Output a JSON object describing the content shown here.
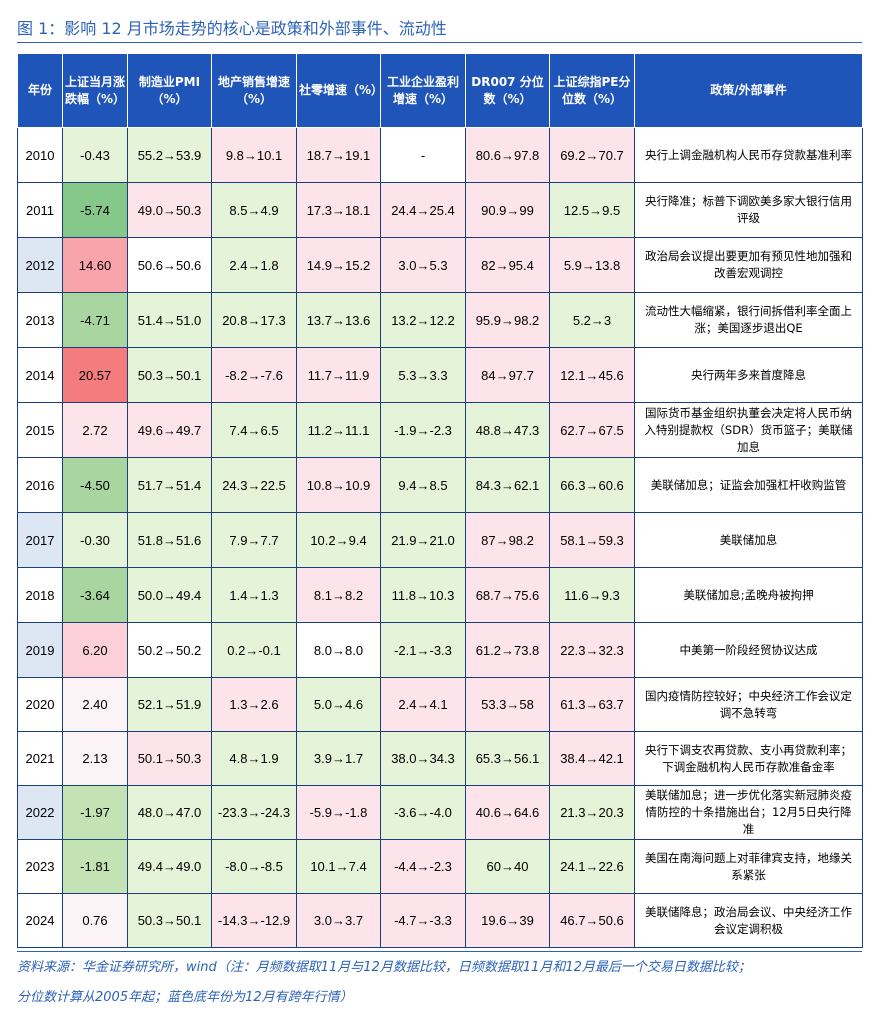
{
  "figure_title": "图 1：影响 12 月市场走势的核心是政策和外部事件、流动性",
  "columns": [
    "年份",
    "上证当月涨跌幅（%）",
    "制造业PMI（%）",
    "地产销售增速（%）",
    "社零增速（%）",
    "工业企业盈利增速（%）",
    "DR007 分位数（%）",
    "上证综指PE分位数（%）",
    "政策/外部事件"
  ],
  "rows": [
    {
      "year": "2010",
      "chg": "-0.43",
      "pmi": "55.2→53.9",
      "estate": "9.8→10.1",
      "retail": "18.7→19.1",
      "profit": "-",
      "dr007": "80.6→97.8",
      "pe": "69.2→70.7",
      "event": "央行上调金融机构人民币存贷款基准利率"
    },
    {
      "year": "2011",
      "chg": "-5.74",
      "pmi": "49.0→50.3",
      "estate": "8.5→4.9",
      "retail": "17.3→18.1",
      "profit": "24.4→25.4",
      "dr007": "90.9→99",
      "pe": "12.5→9.5",
      "event": "央行降准；标普下调欧美多家大银行信用评级"
    },
    {
      "year": "2012",
      "chg": "14.60",
      "pmi": "50.6→50.6",
      "estate": "2.4→1.8",
      "retail": "14.9→15.2",
      "profit": "3.0→5.3",
      "dr007": "82→95.4",
      "pe": "5.9→13.8",
      "event": "政治局会议提出要更加有预见性地加强和改善宏观调控"
    },
    {
      "year": "2013",
      "chg": "-4.71",
      "pmi": "51.4→51.0",
      "estate": "20.8→17.3",
      "retail": "13.7→13.6",
      "profit": "13.2→12.2",
      "dr007": "95.9→98.2",
      "pe": "5.2→3",
      "event": "流动性大幅缩紧，银行间拆借利率全面上涨；美国逐步退出QE"
    },
    {
      "year": "2014",
      "chg": "20.57",
      "pmi": "50.3→50.1",
      "estate": "-8.2→-7.6",
      "retail": "11.7→11.9",
      "profit": "5.3→3.3",
      "dr007": "84→97.7",
      "pe": "12.1→45.6",
      "event": "央行两年多来首度降息"
    },
    {
      "year": "2015",
      "chg": "2.72",
      "pmi": "49.6→49.7",
      "estate": "7.4→6.5",
      "retail": "11.2→11.1",
      "profit": "-1.9→-2.3",
      "dr007": "48.8→47.3",
      "pe": "62.7→67.5",
      "event": "国际货币基金组织执董会决定将人民币纳入特别提款权（SDR）货币篮子；美联储加息"
    },
    {
      "year": "2016",
      "chg": "-4.50",
      "pmi": "51.7→51.4",
      "estate": "24.3→22.5",
      "retail": "10.8→10.9",
      "profit": "9.4→8.5",
      "dr007": "84.3→62.1",
      "pe": "66.3→60.6",
      "event": "美联储加息；证监会加强杠杆收购监管"
    },
    {
      "year": "2017",
      "chg": "-0.30",
      "pmi": "51.8→51.6",
      "estate": "7.9→7.7",
      "retail": "10.2→9.4",
      "profit": "21.9→21.0",
      "dr007": "87→98.2",
      "pe": "58.1→59.3",
      "event": "美联储加息"
    },
    {
      "year": "2018",
      "chg": "-3.64",
      "pmi": "50.0→49.4",
      "estate": "1.4→1.3",
      "retail": "8.1→8.2",
      "profit": "11.8→10.3",
      "dr007": "68.7→75.6",
      "pe": "11.6→9.3",
      "event": "美联储加息;孟晚舟被拘押"
    },
    {
      "year": "2019",
      "chg": "6.20",
      "pmi": "50.2→50.2",
      "estate": "0.2→-0.1",
      "retail": "8.0→8.0",
      "profit": "-2.1→-3.3",
      "dr007": "61.2→73.8",
      "pe": "22.3→32.3",
      "event": "中美第一阶段经贸协议达成"
    },
    {
      "year": "2020",
      "chg": "2.40",
      "pmi": "52.1→51.9",
      "estate": "1.3→2.6",
      "retail": "5.0→4.6",
      "profit": "2.4→4.1",
      "dr007": "53.3→58",
      "pe": "61.3→63.7",
      "event": "国内疫情防控较好；中央经济工作会议定调不急转弯"
    },
    {
      "year": "2021",
      "chg": "2.13",
      "pmi": "50.1→50.3",
      "estate": "4.8→1.9",
      "retail": "3.9→1.7",
      "profit": "38.0→34.3",
      "dr007": "65.3→56.1",
      "pe": "38.4→42.1",
      "event": "央行下调支农再贷款、支小再贷款利率；下调金融机构人民币存款准备金率"
    },
    {
      "year": "2022",
      "chg": "-1.97",
      "pmi": "48.0→47.0",
      "estate": "-23.3→-24.3",
      "retail": "-5.9→-1.8",
      "profit": "-3.6→-4.0",
      "dr007": "40.6→64.6",
      "pe": "21.3→20.3",
      "event": "美联储加息；进一步优化落实新冠肺炎疫情防控的十条措施出台；12月5日央行降准"
    },
    {
      "year": "2023",
      "chg": "-1.81",
      "pmi": "49.4→49.0",
      "estate": "-8.0→-8.5",
      "retail": "10.1→7.4",
      "profit": "-4.4→-2.3",
      "dr007": "60→40",
      "pe": "24.1→22.6",
      "event": "美国在南海问题上对菲律宾支持，地缘关系紧张"
    },
    {
      "year": "2024",
      "chg": "0.76",
      "pmi": "50.3→50.1",
      "estate": "-14.3→-12.9",
      "retail": "3.0→3.7",
      "profit": "-4.7→-3.3",
      "dr007": "19.6→39",
      "pe": "46.7→50.6",
      "event": "美联储降息；政治局会议、中央经济工作会议定调积极"
    }
  ],
  "footnote": {
    "line1": "资料来源：华金证券研究所，wind（注：月频数据取11月与12月数据比较，日频数据取11月和12月最后一个交易日数据比较；",
    "line2": "分位数计算从2005年起；蓝色底年份为12月有跨年行情）"
  },
  "colors": {
    "title_blue": "#2c62b8",
    "header_blue": "#1f55b8",
    "up_red": "#f47b7e",
    "down_green": "#86c88a",
    "year_highlight": "#dde7f4"
  }
}
